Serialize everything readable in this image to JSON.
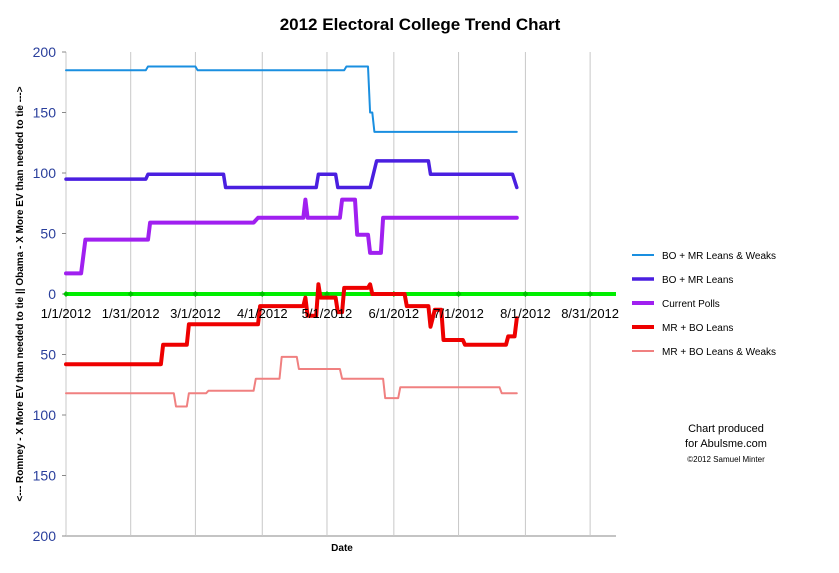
{
  "chart_data": {
    "type": "line",
    "title": "2012 Electoral College Trend Chart",
    "xlabel": "Date",
    "ylabel": "<--- Romney - X More EV than needed to tie || Obama - X More EV than needed to tie --->",
    "x_ticks": [
      "1/1/2012",
      "1/31/2012",
      "3/1/2012",
      "4/1/2012",
      "5/1/2012",
      "6/1/2012",
      "7/1/2012",
      "8/1/2012",
      "8/31/2012"
    ],
    "y_ticks": [
      "200",
      "150",
      "100",
      "50",
      "0",
      "50",
      "100",
      "150",
      "200"
    ],
    "xlim": [
      "2012-01-01",
      "2012-09-12"
    ],
    "ylim": [
      -200,
      200
    ],
    "legend_position": "right",
    "zero_line_color": "#00ee00",
    "series": [
      {
        "name": "BO + MR Leans & Weaks",
        "color": "#1a8fe0",
        "width": 2,
        "points": [
          [
            "2012-01-01",
            185
          ],
          [
            "2012-02-07",
            185
          ],
          [
            "2012-02-08",
            188
          ],
          [
            "2012-03-01",
            188
          ],
          [
            "2012-03-02",
            185
          ],
          [
            "2012-05-09",
            185
          ],
          [
            "2012-05-10",
            188
          ],
          [
            "2012-05-20",
            188
          ],
          [
            "2012-05-21",
            150
          ],
          [
            "2012-05-22",
            150
          ],
          [
            "2012-05-23",
            134
          ],
          [
            "2012-07-28",
            134
          ]
        ]
      },
      {
        "name": "BO + MR Leans",
        "color": "#4a1fe0",
        "width": 3.5,
        "points": [
          [
            "2012-01-01",
            95
          ],
          [
            "2012-02-07",
            95
          ],
          [
            "2012-02-08",
            99
          ],
          [
            "2012-03-14",
            99
          ],
          [
            "2012-03-15",
            88
          ],
          [
            "2012-04-26",
            88
          ],
          [
            "2012-04-27",
            99
          ],
          [
            "2012-05-05",
            99
          ],
          [
            "2012-05-06",
            88
          ],
          [
            "2012-05-21",
            88
          ],
          [
            "2012-05-24",
            110
          ],
          [
            "2012-06-17",
            110
          ],
          [
            "2012-06-18",
            99
          ],
          [
            "2012-07-26",
            99
          ],
          [
            "2012-07-28",
            88
          ]
        ]
      },
      {
        "name": "Current Polls",
        "color": "#a020f0",
        "width": 4,
        "points": [
          [
            "2012-01-01",
            17
          ],
          [
            "2012-01-08",
            17
          ],
          [
            "2012-01-10",
            45
          ],
          [
            "2012-02-08",
            45
          ],
          [
            "2012-02-09",
            59
          ],
          [
            "2012-03-28",
            59
          ],
          [
            "2012-03-30",
            63
          ],
          [
            "2012-04-20",
            63
          ],
          [
            "2012-04-21",
            78
          ],
          [
            "2012-04-22",
            63
          ],
          [
            "2012-05-07",
            63
          ],
          [
            "2012-05-08",
            78
          ],
          [
            "2012-05-14",
            78
          ],
          [
            "2012-05-15",
            49
          ],
          [
            "2012-05-20",
            49
          ],
          [
            "2012-05-21",
            34
          ],
          [
            "2012-05-26",
            34
          ],
          [
            "2012-05-27",
            63
          ],
          [
            "2012-07-28",
            63
          ]
        ]
      },
      {
        "name": "MR + BO Leans",
        "color": "#ee0000",
        "width": 4,
        "points": [
          [
            "2012-01-01",
            -58
          ],
          [
            "2012-02-14",
            -58
          ],
          [
            "2012-02-15",
            -42
          ],
          [
            "2012-02-26",
            -42
          ],
          [
            "2012-02-27",
            -25
          ],
          [
            "2012-03-30",
            -25
          ],
          [
            "2012-03-31",
            -10
          ],
          [
            "2012-04-20",
            -10
          ],
          [
            "2012-04-21",
            -3
          ],
          [
            "2012-04-22",
            -18
          ],
          [
            "2012-04-26",
            -18
          ],
          [
            "2012-04-27",
            8
          ],
          [
            "2012-04-28",
            -3
          ],
          [
            "2012-05-05",
            -3
          ],
          [
            "2012-05-06",
            -15
          ],
          [
            "2012-05-08",
            -15
          ],
          [
            "2012-05-09",
            5
          ],
          [
            "2012-05-20",
            5
          ],
          [
            "2012-05-21",
            8
          ],
          [
            "2012-05-22",
            0
          ],
          [
            "2012-06-06",
            0
          ],
          [
            "2012-06-07",
            -10
          ],
          [
            "2012-06-17",
            -10
          ],
          [
            "2012-06-18",
            -27
          ],
          [
            "2012-06-20",
            -13
          ],
          [
            "2012-06-23",
            -13
          ],
          [
            "2012-06-24",
            -38
          ],
          [
            "2012-07-03",
            -38
          ],
          [
            "2012-07-04",
            -42
          ],
          [
            "2012-07-23",
            -42
          ],
          [
            "2012-07-24",
            -35
          ],
          [
            "2012-07-27",
            -35
          ],
          [
            "2012-07-28",
            -20
          ]
        ]
      },
      {
        "name": "MR + BO Leans & Weaks",
        "color": "#f08080",
        "width": 2,
        "points": [
          [
            "2012-01-01",
            -82
          ],
          [
            "2012-02-20",
            -82
          ],
          [
            "2012-02-21",
            -93
          ],
          [
            "2012-02-26",
            -93
          ],
          [
            "2012-02-27",
            -82
          ],
          [
            "2012-03-06",
            -82
          ],
          [
            "2012-03-07",
            -80
          ],
          [
            "2012-03-28",
            -80
          ],
          [
            "2012-03-29",
            -70
          ],
          [
            "2012-04-09",
            -70
          ],
          [
            "2012-04-10",
            -52
          ],
          [
            "2012-04-17",
            -52
          ],
          [
            "2012-04-18",
            -62
          ],
          [
            "2012-05-07",
            -62
          ],
          [
            "2012-05-08",
            -70
          ],
          [
            "2012-05-27",
            -70
          ],
          [
            "2012-05-28",
            -86
          ],
          [
            "2012-06-03",
            -86
          ],
          [
            "2012-06-04",
            -77
          ],
          [
            "2012-07-20",
            -77
          ],
          [
            "2012-07-21",
            -82
          ],
          [
            "2012-07-28",
            -82
          ]
        ]
      }
    ],
    "annotations": [
      "Chart produced",
      "for Abulsme.com",
      "©2012 Samuel Minter"
    ]
  }
}
